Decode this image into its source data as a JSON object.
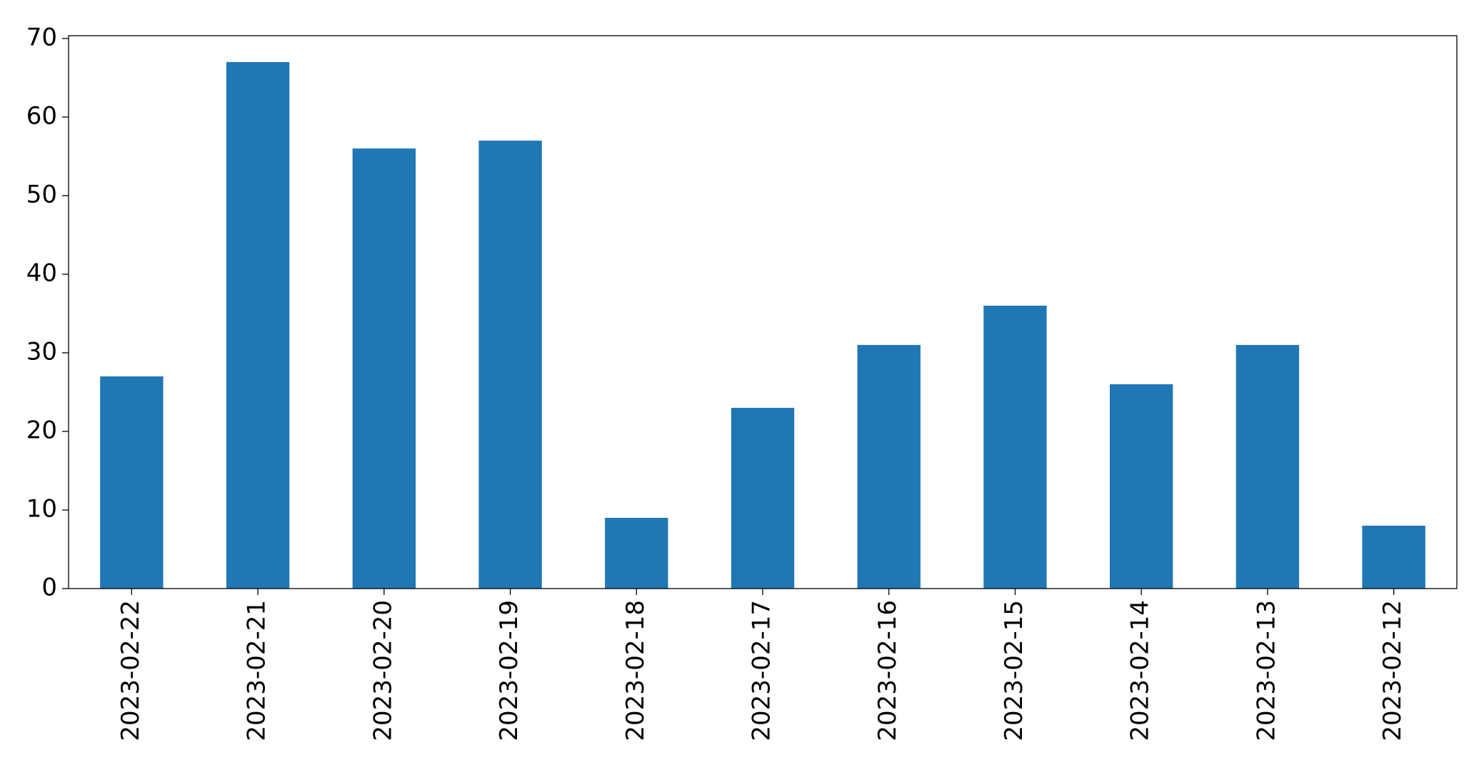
{
  "chart_data": {
    "type": "bar",
    "categories": [
      "2023-02-22",
      "2023-02-21",
      "2023-02-20",
      "2023-02-19",
      "2023-02-18",
      "2023-02-17",
      "2023-02-16",
      "2023-02-15",
      "2023-02-14",
      "2023-02-13",
      "2023-02-12"
    ],
    "values": [
      27,
      67,
      56,
      57,
      9,
      23,
      31,
      36,
      26,
      31,
      8
    ],
    "color": "#1f77b4",
    "ylim": [
      0,
      70.35
    ],
    "yticks": [
      0,
      10,
      20,
      30,
      40,
      50,
      60,
      70
    ],
    "grid": false
  }
}
